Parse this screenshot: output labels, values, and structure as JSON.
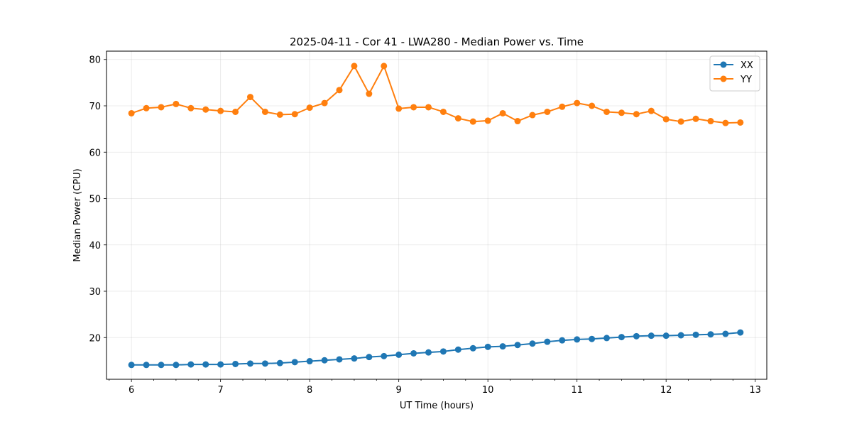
{
  "chart_data": {
    "type": "line",
    "title": "2025-04-11 - Cor 41 - LWA280 - Median Power vs. Time",
    "xlabel": "UT Time (hours)",
    "ylabel": "Median Power (CPU)",
    "xlim": [
      5.72,
      13.13
    ],
    "ylim": [
      11.0,
      81.8
    ],
    "xticks": [
      6,
      7,
      8,
      9,
      10,
      11,
      12,
      13
    ],
    "yticks": [
      20,
      30,
      40,
      50,
      60,
      70,
      80
    ],
    "x_minor_tick_step": 0.25,
    "grid": true,
    "legend_position": "upper right",
    "x": [
      6.0,
      6.1667,
      6.3333,
      6.5,
      6.6667,
      6.8333,
      7.0,
      7.1667,
      7.3333,
      7.5,
      7.6667,
      7.8333,
      8.0,
      8.1667,
      8.3333,
      8.5,
      8.6667,
      8.8333,
      9.0,
      9.1667,
      9.3333,
      9.5,
      9.6667,
      9.8333,
      10.0,
      10.1667,
      10.3333,
      10.5,
      10.6667,
      10.8333,
      11.0,
      11.1667,
      11.3333,
      11.5,
      11.6667,
      11.8333,
      12.0,
      12.1667,
      12.3333,
      12.5,
      12.6667,
      12.8333
    ],
    "series": [
      {
        "name": "XX",
        "color": "#1f77b4",
        "marker": "circle",
        "values": [
          14.1,
          14.1,
          14.1,
          14.1,
          14.2,
          14.2,
          14.2,
          14.3,
          14.4,
          14.4,
          14.5,
          14.7,
          14.9,
          15.1,
          15.3,
          15.5,
          15.8,
          16.0,
          16.3,
          16.6,
          16.8,
          17.0,
          17.4,
          17.7,
          18.0,
          18.1,
          18.4,
          18.7,
          19.1,
          19.4,
          19.6,
          19.7,
          19.9,
          20.1,
          20.3,
          20.4,
          20.4,
          20.5,
          20.6,
          20.7,
          20.8,
          21.1
        ]
      },
      {
        "name": "YY",
        "color": "#ff7f0e",
        "marker": "circle",
        "values": [
          68.4,
          69.5,
          69.7,
          70.4,
          69.5,
          69.2,
          68.9,
          68.7,
          71.9,
          68.7,
          68.1,
          68.2,
          69.6,
          70.6,
          73.4,
          78.6,
          72.6,
          78.6,
          69.4,
          69.7,
          69.7,
          68.7,
          67.3,
          66.6,
          66.8,
          68.4,
          66.7,
          68.0,
          68.7,
          69.8,
          70.6,
          70.0,
          68.7,
          68.5,
          68.2,
          68.9,
          67.1,
          66.6,
          67.2,
          66.7,
          66.3,
          66.4
        ]
      }
    ]
  }
}
